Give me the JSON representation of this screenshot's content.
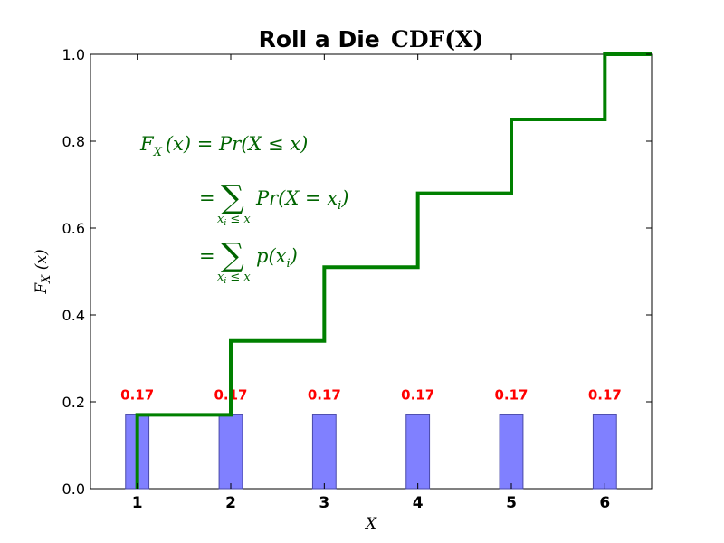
{
  "chart_data": {
    "type": "bar",
    "title_bold": "Roll a Die",
    "title_math": "CDF(X)",
    "xlabel": "X",
    "ylabel": "F_X(x)",
    "x_ticks": [
      "1",
      "2",
      "3",
      "4",
      "5",
      "6"
    ],
    "y_ticks": [
      "0.0",
      "0.2",
      "0.4",
      "0.6",
      "0.8",
      "1.0"
    ],
    "xlim": [
      0.5,
      6.5
    ],
    "ylim": [
      0.0,
      1.0
    ],
    "grid": false,
    "series": [
      {
        "type": "bar",
        "x": [
          1,
          2,
          3,
          4,
          5,
          6
        ],
        "values": [
          0.17,
          0.17,
          0.17,
          0.17,
          0.17,
          0.17
        ],
        "labels": [
          "0.17",
          "0.17",
          "0.17",
          "0.17",
          "0.17",
          "0.17"
        ],
        "color": "#8080ff",
        "label_color": "#ff0000"
      },
      {
        "type": "step",
        "x": [
          1,
          2,
          3,
          4,
          5,
          6,
          6.5
        ],
        "values": [
          0.17,
          0.34,
          0.51,
          0.68,
          0.85,
          1.0,
          1.0
        ],
        "color": "#008000"
      }
    ],
    "annotation": {
      "color": "#006400",
      "line1_lhs": "F",
      "line1_lhs_sub": "X",
      "line1_arg": "(x) = Pr(X ≤ x)",
      "line2_eq": "=",
      "line2_sum": "∑",
      "line2_sum_sub": "x",
      "line2_sum_sub_i": "i",
      "line2_sum_sub_rest": " ≤ x",
      "line2_rhs": "Pr(X = x",
      "line2_rhs_sub": "i",
      "line2_rhs_end": ")",
      "line3_eq": "=",
      "line3_sum": "∑",
      "line3_sum_sub": "x",
      "line3_sum_sub_i": "i",
      "line3_sum_sub_rest": " ≤ x",
      "line3_rhs": "p(x",
      "line3_rhs_sub": "i",
      "line3_rhs_end": ")"
    }
  }
}
